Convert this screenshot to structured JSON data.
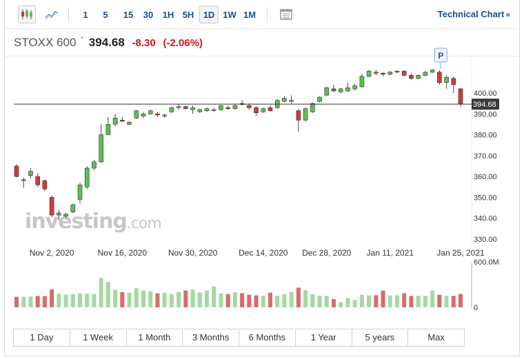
{
  "toolbar": {
    "candlestick_icon": "candlestick-chart-icon",
    "line_icon": "line-chart-icon",
    "intervals": [
      "1",
      "5",
      "15",
      "30",
      "1H",
      "5H",
      "1D",
      "1W",
      "1M"
    ],
    "active_interval": "1D",
    "settings_icon": "chart-settings-icon",
    "technical_chart_label": "Technical Chart",
    "technical_chart_arrows": "»"
  },
  "quote": {
    "name": "STOXX 600",
    "marker": "*",
    "price": "394.68",
    "change": "-8.30",
    "change_pct": "(-2.06%)"
  },
  "watermark": {
    "brand": "investing",
    "domain": ".com"
  },
  "marker_p": "P",
  "ranges": [
    "1 Day",
    "1 Week",
    "1 Month",
    "3 Months",
    "6 Months",
    "1 Year",
    "5 years",
    "Max"
  ],
  "colors": {
    "up": "#5cbf56",
    "down": "#d13a3a",
    "vol_up": "#a6d8a3",
    "vol_down": "#d96b6b",
    "accent": "#1a4d8f"
  },
  "chart_data": {
    "type": "candlestick",
    "y_ticks": [
      "330.00",
      "340.00",
      "350.00",
      "360.00",
      "370.00",
      "380.00",
      "390.00",
      "400.00"
    ],
    "ylim": [
      325,
      410
    ],
    "x_ticks": [
      {
        "label": "Nov 2, 2020",
        "index": 5
      },
      {
        "label": "Nov 16, 2020",
        "index": 15
      },
      {
        "label": "Nov 30, 2020",
        "index": 25
      },
      {
        "label": "Dec 14, 2020",
        "index": 35
      },
      {
        "label": "Dec 28, 2020",
        "index": 44
      },
      {
        "label": "Jan 11, 2021",
        "index": 53
      },
      {
        "label": "Jan 25, 2021",
        "index": 63
      }
    ],
    "last_price_label": "394.68",
    "last_price": 394.68,
    "volume_ticks": [
      "600.0M",
      "0"
    ],
    "candles": [
      [
        365.0,
        366.0,
        359.5,
        360.0
      ],
      [
        358.0,
        359.5,
        354.5,
        358.5
      ],
      [
        360.5,
        364.0,
        359.0,
        362.5
      ],
      [
        360.0,
        361.5,
        355.0,
        356.0
      ],
      [
        358.0,
        358.5,
        353.0,
        354.0
      ],
      [
        350.0,
        351.0,
        340.5,
        341.5
      ],
      [
        341.5,
        344.0,
        339.0,
        342.5
      ],
      [
        341.0,
        342.5,
        339.5,
        342.0
      ],
      [
        343.0,
        347.0,
        342.5,
        346.5
      ],
      [
        349.0,
        357.0,
        347.0,
        356.0
      ],
      [
        355.0,
        365.0,
        354.0,
        364.0
      ],
      [
        364.0,
        368.0,
        363.0,
        367.0
      ],
      [
        367.0,
        385.0,
        366.5,
        380.0
      ],
      [
        380.0,
        388.5,
        380.0,
        385.0
      ],
      [
        385.0,
        390.0,
        384.0,
        388.0
      ],
      [
        387.0,
        388.5,
        386.0,
        386.5
      ],
      [
        385.0,
        386.5,
        384.5,
        386.0
      ],
      [
        388.0,
        392.0,
        387.5,
        391.5
      ],
      [
        389.0,
        391.0,
        388.0,
        390.0
      ],
      [
        390.0,
        392.0,
        389.5,
        391.5
      ],
      [
        390.0,
        391.0,
        388.5,
        389.5
      ],
      [
        389.0,
        390.0,
        388.0,
        389.5
      ],
      [
        391.0,
        393.5,
        390.5,
        393.0
      ],
      [
        393.0,
        394.5,
        392.0,
        393.5
      ],
      [
        393.5,
        394.0,
        392.0,
        392.5
      ],
      [
        392.0,
        394.0,
        390.0,
        393.0
      ],
      [
        391.0,
        392.5,
        390.5,
        392.0
      ],
      [
        391.5,
        393.0,
        391.0,
        392.5
      ],
      [
        392.0,
        393.0,
        391.0,
        392.0
      ],
      [
        392.0,
        394.0,
        391.5,
        394.0
      ],
      [
        393.0,
        394.0,
        392.0,
        392.5
      ],
      [
        392.5,
        394.5,
        392.0,
        394.0
      ],
      [
        395.0,
        396.5,
        394.0,
        394.5
      ],
      [
        394.0,
        395.0,
        392.0,
        393.0
      ],
      [
        393.0,
        393.5,
        389.0,
        390.5
      ],
      [
        391.0,
        393.0,
        390.5,
        392.5
      ],
      [
        393.0,
        394.0,
        391.0,
        391.5
      ],
      [
        393.0,
        397.0,
        392.5,
        396.5
      ],
      [
        396.0,
        398.5,
        395.5,
        397.5
      ],
      [
        396.0,
        399.0,
        395.0,
        396.5
      ],
      [
        391.5,
        392.5,
        381.5,
        387.0
      ],
      [
        387.0,
        393.0,
        386.5,
        392.5
      ],
      [
        391.0,
        395.5,
        390.5,
        395.0
      ],
      [
        396.0,
        398.5,
        395.5,
        398.0
      ],
      [
        399.0,
        403.0,
        398.5,
        402.5
      ],
      [
        402.0,
        404.0,
        400.5,
        401.0
      ],
      [
        400.5,
        402.5,
        400.0,
        402.0
      ],
      [
        401.0,
        405.0,
        400.5,
        402.5
      ],
      [
        402.0,
        404.5,
        401.0,
        403.5
      ],
      [
        403.0,
        409.0,
        402.5,
        408.0
      ],
      [
        408.0,
        411.0,
        407.5,
        410.5
      ],
      [
        410.0,
        411.0,
        408.5,
        409.5
      ],
      [
        409.5,
        410.0,
        408.0,
        409.0
      ],
      [
        409.0,
        410.5,
        408.5,
        410.0
      ],
      [
        410.0,
        411.0,
        409.5,
        410.5
      ],
      [
        410.5,
        411.0,
        408.0,
        408.5
      ],
      [
        408.5,
        409.5,
        406.5,
        407.0
      ],
      [
        407.0,
        409.0,
        406.5,
        408.5
      ],
      [
        408.5,
        410.5,
        408.0,
        410.0
      ],
      [
        410.0,
        411.5,
        409.5,
        411.0
      ],
      [
        410.0,
        411.0,
        404.0,
        405.0
      ],
      [
        405.0,
        408.5,
        402.0,
        407.5
      ],
      [
        407.0,
        408.0,
        400.0,
        404.0
      ],
      [
        402.0,
        402.5,
        393.5,
        394.68
      ]
    ],
    "volumes_m": [
      148,
      148,
      150,
      160,
      158,
      250,
      192,
      178,
      187,
      195,
      192,
      186,
      415,
      355,
      245,
      214,
      205,
      268,
      236,
      226,
      196,
      205,
      186,
      217,
      236,
      248,
      208,
      238,
      294,
      198,
      186,
      210,
      200,
      176,
      168,
      163,
      205,
      165,
      185,
      215,
      276,
      240,
      183,
      162,
      160,
      115,
      72,
      128,
      102,
      175,
      168,
      170,
      233,
      168,
      170,
      198,
      160,
      162,
      160,
      238,
      176,
      160,
      161,
      188
    ]
  }
}
